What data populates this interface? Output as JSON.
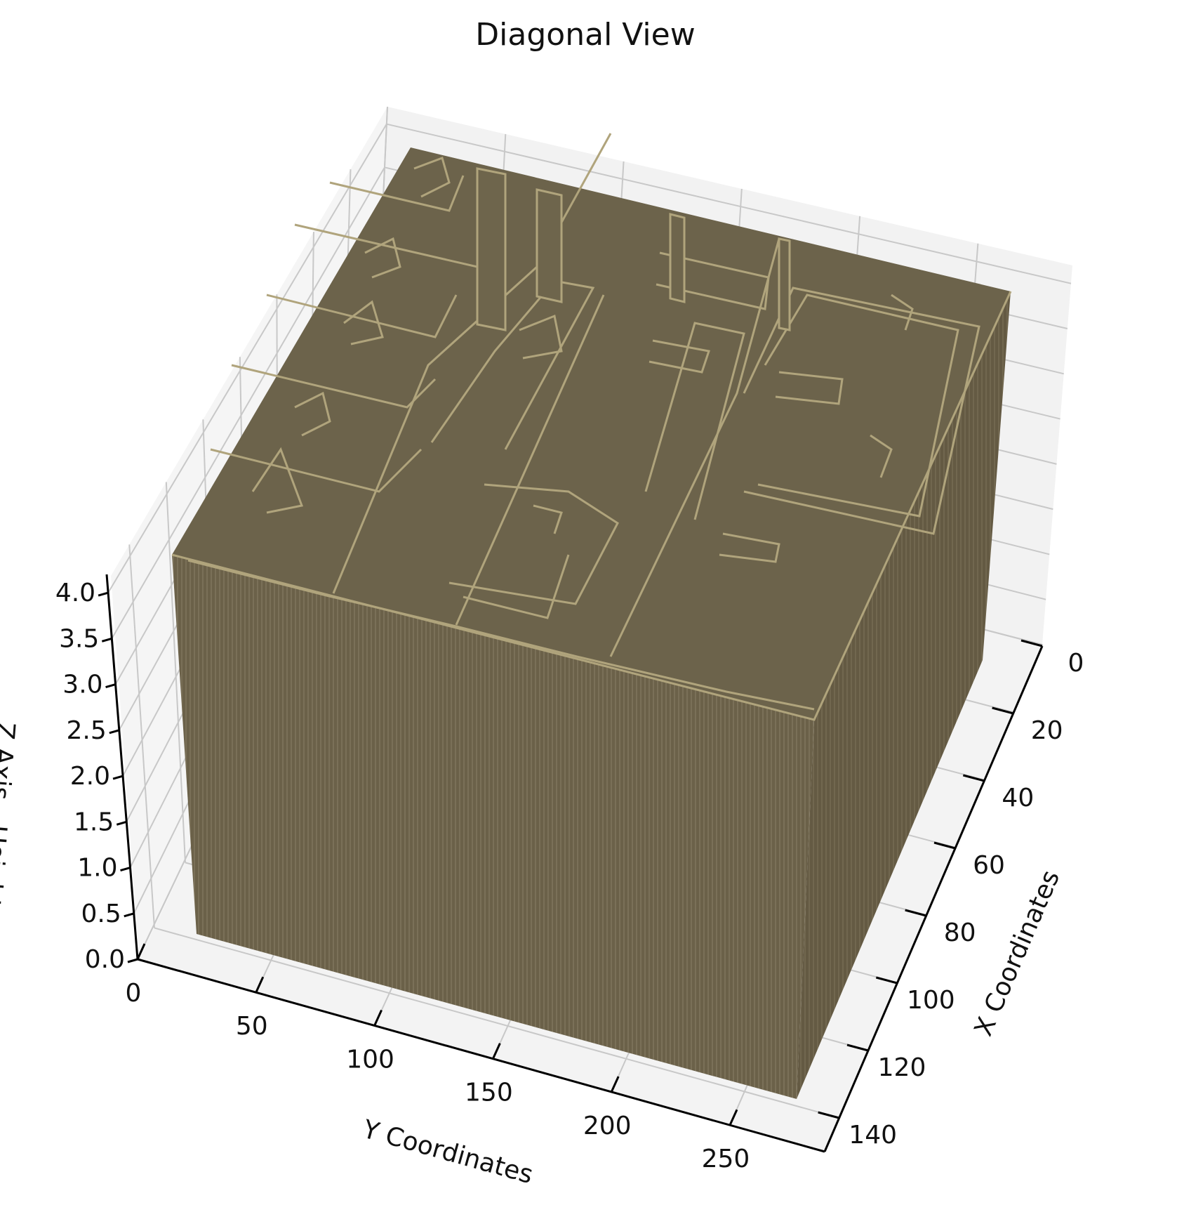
{
  "chart_data": {
    "type": "3d-voxel",
    "title": "Diagonal View",
    "xlabel": "X Coordinates",
    "ylabel": "Y Coordinates",
    "zlabel": "Z Axis - Height",
    "x_ticks": [
      0,
      20,
      40,
      60,
      80,
      100,
      120,
      140
    ],
    "y_ticks": [
      0,
      50,
      100,
      150,
      200,
      250
    ],
    "z_ticks": [
      "0.0",
      "0.5",
      "1.0",
      "1.5",
      "2.0",
      "2.5",
      "3.0",
      "3.5",
      "4.0"
    ],
    "xlim": [
      0,
      150
    ],
    "ylim": [
      0,
      290
    ],
    "zlim": [
      0,
      4.2
    ],
    "grid": true,
    "colors": {
      "voxel_face": "#6b6149",
      "voxel_edge": "#b0a47c",
      "pane": "#f2f2f2",
      "grid": "#c8c8c8"
    }
  }
}
